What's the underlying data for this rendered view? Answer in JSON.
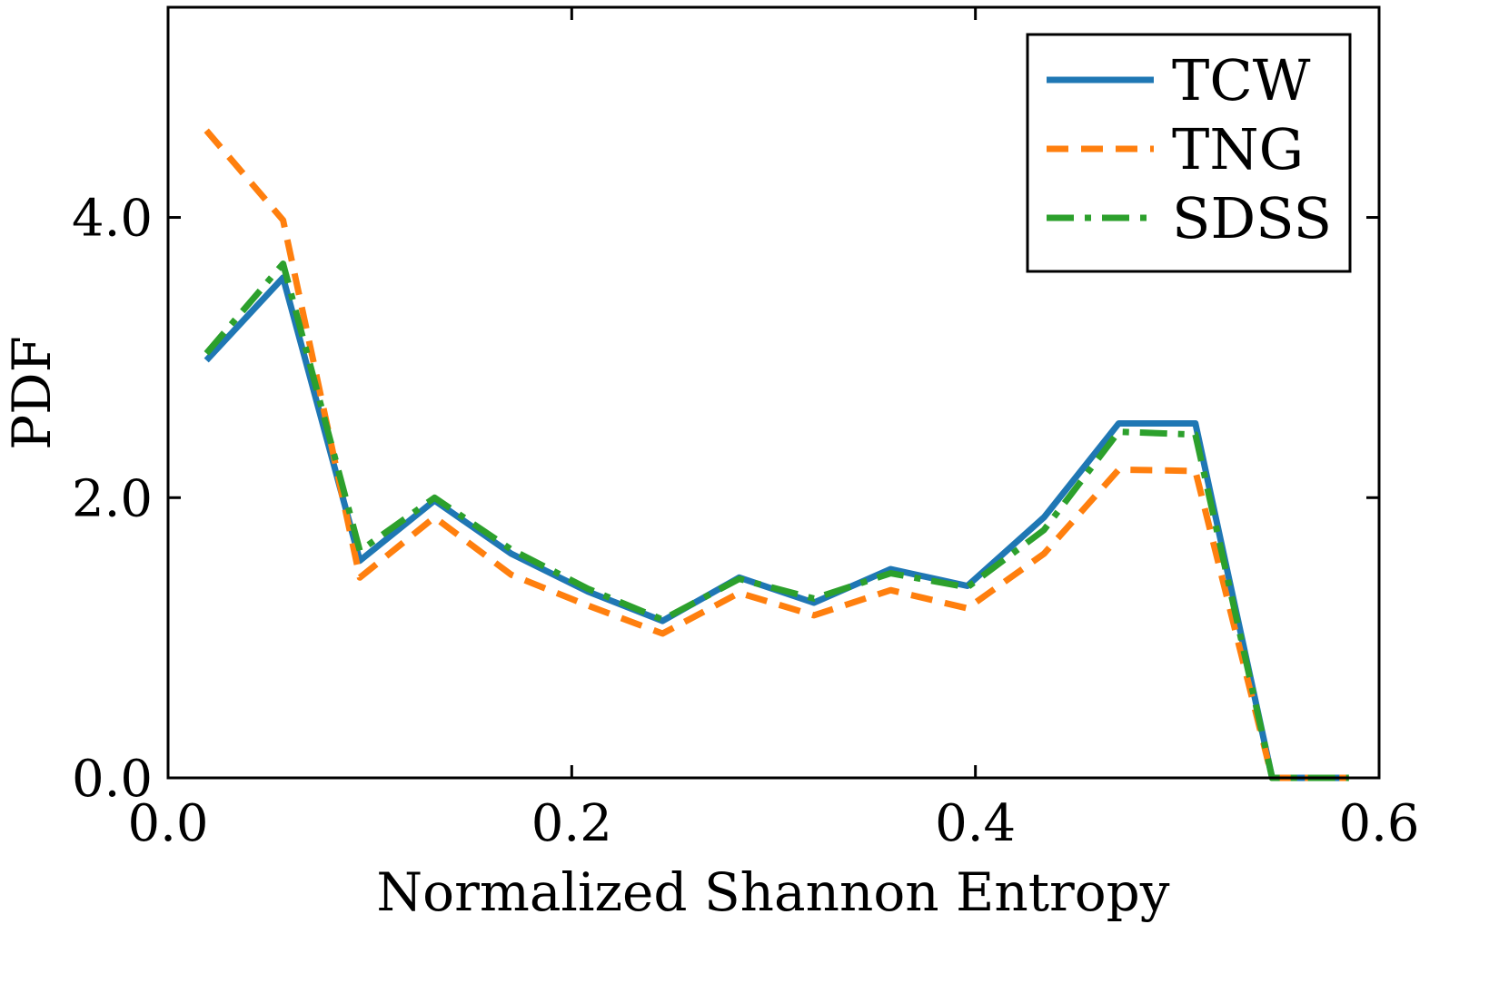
{
  "chart_data": {
    "type": "line",
    "title": "",
    "xlabel": "Normalized Shannon Entropy",
    "ylabel": "PDF",
    "xlim": [
      0.0,
      0.6
    ],
    "ylim": [
      0.0,
      5.5
    ],
    "xticks": [
      0.0,
      0.2,
      0.4,
      0.6
    ],
    "xtick_labels": [
      "0.0",
      "0.2",
      "0.4",
      "0.6"
    ],
    "yticks": [
      0.0,
      2.0,
      4.0
    ],
    "ytick_labels": [
      "0.0",
      "2.0",
      "4.0"
    ],
    "grid": false,
    "legend_position": "top-right",
    "x": [
      0.019,
      0.057,
      0.095,
      0.132,
      0.17,
      0.208,
      0.245,
      0.283,
      0.32,
      0.358,
      0.396,
      0.434,
      0.471,
      0.509,
      0.547,
      0.585
    ],
    "series": [
      {
        "name": "TCW",
        "color": "#1f77b4",
        "style": "solid",
        "values": [
          2.98,
          3.57,
          1.55,
          1.98,
          1.6,
          1.33,
          1.12,
          1.43,
          1.25,
          1.49,
          1.37,
          1.86,
          2.53,
          2.53,
          0.0,
          0.0
        ]
      },
      {
        "name": "TNG",
        "color": "#ff7f0e",
        "style": "dashed",
        "values": [
          4.62,
          3.98,
          1.43,
          1.86,
          1.45,
          1.23,
          1.03,
          1.32,
          1.16,
          1.34,
          1.21,
          1.6,
          2.2,
          2.19,
          0.0,
          0.0
        ]
      },
      {
        "name": "SDSS",
        "color": "#2ca02c",
        "style": "dashdot",
        "values": [
          3.03,
          3.67,
          1.62,
          2.0,
          1.63,
          1.35,
          1.13,
          1.42,
          1.28,
          1.46,
          1.36,
          1.77,
          2.47,
          2.45,
          0.0,
          0.0
        ]
      }
    ]
  }
}
